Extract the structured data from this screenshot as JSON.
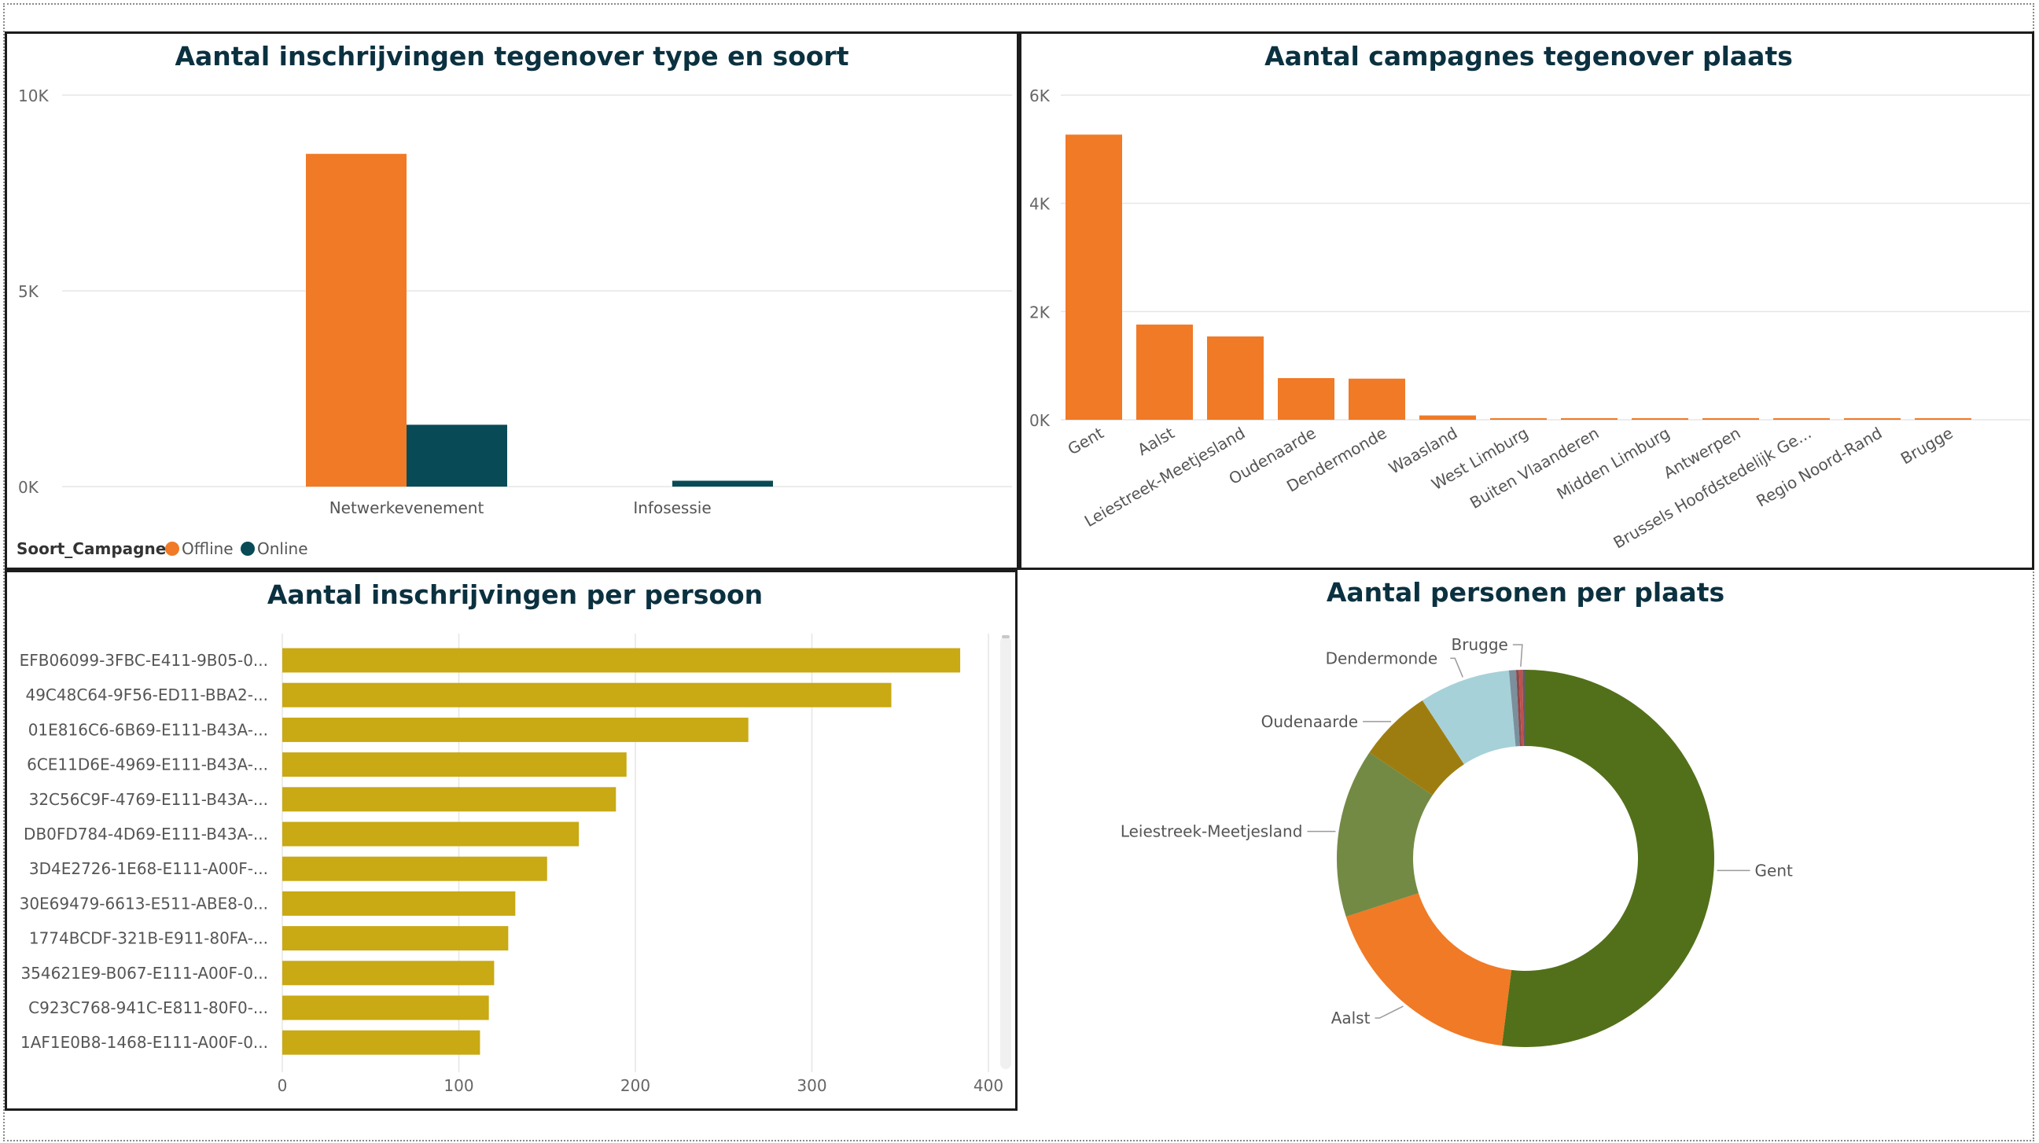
{
  "colors": {
    "offline": "#F07A26",
    "online": "#084B57",
    "persoon_bar": "#C9A914",
    "title": "#0B3140"
  },
  "chart_data": [
    {
      "id": "inschrijvingen_type_soort",
      "type": "bar",
      "title": "Aantal inschrijvingen tegenover type en soort",
      "categories": [
        "Netwerkevenement",
        "Infosessie"
      ],
      "series": [
        {
          "name": "Offline",
          "values": [
            8500,
            0
          ]
        },
        {
          "name": "Online",
          "values": [
            1580,
            150
          ]
        }
      ],
      "ylim": [
        0,
        10000
      ],
      "yticks": [
        0,
        5000,
        10000
      ],
      "ytick_labels": [
        "0K",
        "5K",
        "10K"
      ],
      "legend_title": "Soort_Campagne",
      "legend_position": "bottom-left",
      "grid": true
    },
    {
      "id": "campagnes_plaats",
      "type": "bar",
      "title": "Aantal campagnes tegenover plaats",
      "categories": [
        "Gent",
        "Aalst",
        "Leiestreek-Meetjesland",
        "Oudenaarde",
        "Dendermonde",
        "Waasland",
        "West Limburg",
        "Buiten Vlaanderen",
        "Midden Limburg",
        "Antwerpen",
        "Brussels Hoofdstedelijk Ge...",
        "Regio Noord-Rand",
        "Brugge"
      ],
      "values": [
        5270,
        1760,
        1540,
        770,
        760,
        80,
        20,
        15,
        12,
        10,
        8,
        6,
        5
      ],
      "ylim": [
        0,
        6000
      ],
      "yticks": [
        0,
        2000,
        4000,
        6000
      ],
      "ytick_labels": [
        "0K",
        "2K",
        "4K",
        "6K"
      ],
      "grid": true
    },
    {
      "id": "inschrijvingen_persoon",
      "type": "bar",
      "orientation": "horizontal",
      "title": "Aantal inschrijvingen per persoon",
      "categories": [
        "EFB06099-3FBC-E411-9B05-0...",
        "49C48C64-9F56-ED11-BBA2-...",
        "01E816C6-6B69-E111-B43A-...",
        "6CE11D6E-4969-E111-B43A-...",
        "32C56C9F-4769-E111-B43A-...",
        "DB0FD784-4D69-E111-B43A-...",
        "3D4E2726-1E68-E111-A00F-...",
        "30E69479-6613-E511-ABE8-0...",
        "1774BCDF-321B-E911-80FA-...",
        "354621E9-B067-E111-A00F-0...",
        "C923C768-941C-E811-80F0-...",
        "1AF1E0B8-1468-E111-A00F-0..."
      ],
      "values": [
        384,
        345,
        264,
        195,
        189,
        168,
        150,
        132,
        128,
        120,
        117,
        112
      ],
      "xlim": [
        0,
        400
      ],
      "xticks": [
        0,
        100,
        200,
        300,
        400
      ],
      "xtick_labels": [
        "0",
        "100",
        "200",
        "300",
        "400"
      ],
      "grid": true
    },
    {
      "id": "personen_plaats",
      "type": "pie",
      "donut": true,
      "title": "Aantal personen per plaats",
      "slices": [
        {
          "label": "Gent",
          "value": 52.0,
          "color": "#52701A"
        },
        {
          "label": "Aalst",
          "value": 18.0,
          "color": "#F07A26"
        },
        {
          "label": "Leiestreek-Meetjesland",
          "value": 14.5,
          "color": "#738A45"
        },
        {
          "label": "Oudenaarde",
          "value": 6.3,
          "color": "#9E7D10"
        },
        {
          "label": "Dendermonde",
          "value": 7.8,
          "color": "#A6D1D8"
        },
        {
          "label": "",
          "value": 0.6,
          "color": "#7B8F9C"
        },
        {
          "label": "",
          "value": 0.25,
          "color": "#8C4A4A"
        },
        {
          "label": "Brugge",
          "value": 0.3,
          "color": "#C0504D"
        },
        {
          "label": "",
          "value": 0.25,
          "color": "#5E5E5E"
        }
      ]
    }
  ]
}
